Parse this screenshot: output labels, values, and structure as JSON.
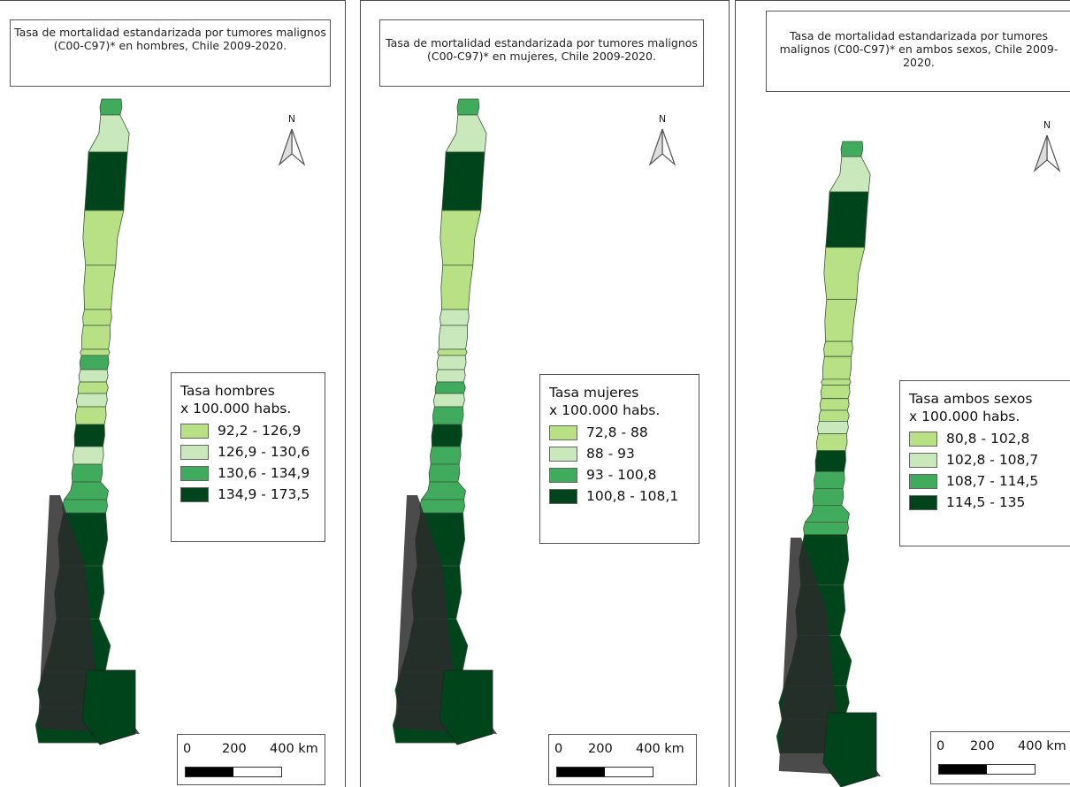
{
  "colors": {
    "class1": "#b8e186",
    "class2": "#c9e8bc",
    "class3": "#41ab5d",
    "class4": "#00441b",
    "south_dark": "#2b2b2b"
  },
  "panels": [
    {
      "title": "Tasa de mortalidad estandarizada por tumores malignos (C00-C97)* en hombres, Chile 2009-2020.",
      "north_label": "N",
      "legend": {
        "title_line1": "Tasa hombres",
        "title_line2": "x 100.000 habs.",
        "classes": [
          "92,2 - 126,9",
          "126,9 - 130,6",
          "130,6 - 134,9",
          "134,9 - 173,5"
        ]
      },
      "scale": {
        "zero": "0",
        "mid": "200",
        "end": "400 km"
      },
      "map_colors": [
        "class3",
        "class2",
        "class4",
        "class1",
        "class1",
        "class1",
        "class1",
        "class1",
        "class3",
        "class2",
        "class1",
        "class2",
        "class1",
        "class4",
        "class2",
        "class3",
        "class3",
        "class3",
        "class4",
        "class4",
        "class4",
        "class4",
        "class4"
      ]
    },
    {
      "title": "Tasa de mortalidad estandarizada por tumores malignos (C00-C97)* en mujeres, Chile 2009-2020.",
      "north_label": "N",
      "legend": {
        "title_line1": "Tasa mujeres",
        "title_line2": "x 100.000 habs.",
        "classes": [
          "72,8 - 88",
          "88 - 93",
          "93 - 100,8",
          "100,8 - 108,1"
        ]
      },
      "scale": {
        "zero": "0",
        "mid": "200",
        "end": "400 km"
      },
      "map_colors": [
        "class3",
        "class2",
        "class4",
        "class1",
        "class1",
        "class2",
        "class2",
        "class1",
        "class2",
        "class2",
        "class3",
        "class2",
        "class3",
        "class4",
        "class3",
        "class3",
        "class3",
        "class3",
        "class4",
        "class4",
        "class4",
        "class4",
        "class4"
      ]
    },
    {
      "title": "Tasa de mortalidad estandarizada por tumores malignos (C00-C97)* en ambos sexos, Chile 2009-2020.",
      "north_label": "N",
      "legend": {
        "title_line1": "Tasa ambos sexos",
        "title_line2": "x 100.000 habs.",
        "classes": [
          "80,8 - 102,8",
          "102,8 - 108,7",
          "108,7 - 114,5",
          "114,5 - 135"
        ]
      },
      "scale": {
        "zero": "0",
        "mid": "200",
        "end": "400 km"
      },
      "map_colors": [
        "class3",
        "class2",
        "class4",
        "class1",
        "class1",
        "class1",
        "class1",
        "class1",
        "class1",
        "class1",
        "class1",
        "class2",
        "class1",
        "class4",
        "class3",
        "class3",
        "class3",
        "class3",
        "class4",
        "class4",
        "class4",
        "class4",
        "class4"
      ]
    }
  ]
}
